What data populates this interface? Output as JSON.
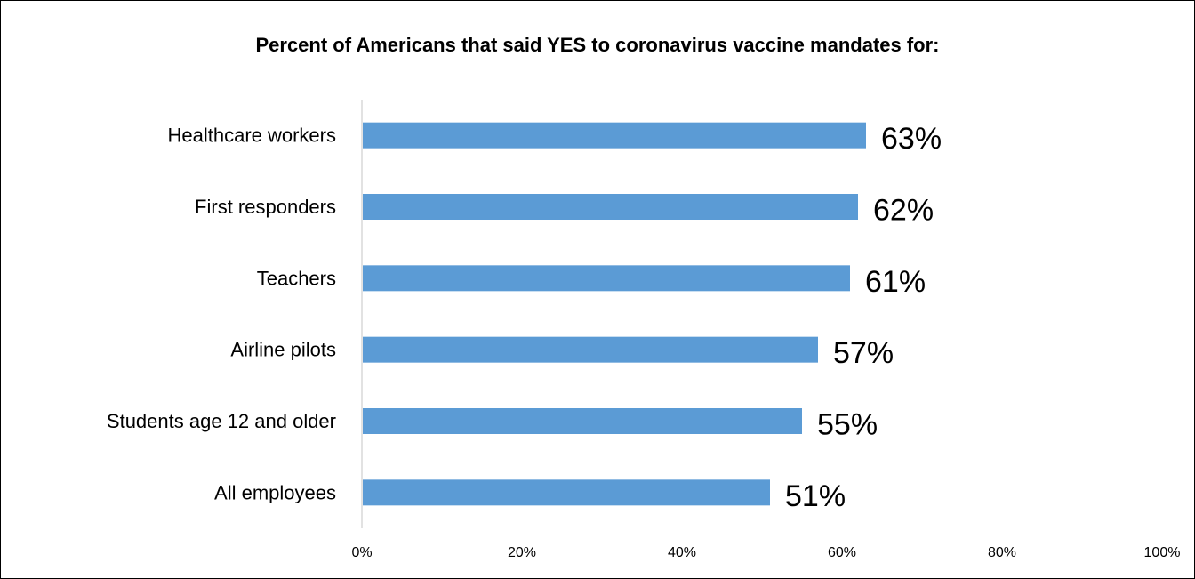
{
  "chart_data": {
    "type": "bar",
    "orientation": "horizontal",
    "title": "Percent of Americans that said YES to coronavirus vaccine mandates for:",
    "categories": [
      "Healthcare workers",
      "First responders",
      "Teachers",
      "Airline pilots",
      "Students age 12 and older",
      "All employees"
    ],
    "values": [
      63,
      62,
      61,
      57,
      55,
      51
    ],
    "data_labels": [
      "63%",
      "62%",
      "61%",
      "57%",
      "55%",
      "51%"
    ],
    "xlim": [
      0,
      100
    ],
    "x_ticks": [
      0,
      20,
      40,
      60,
      80,
      100
    ],
    "x_tick_labels": [
      "0%",
      "20%",
      "40%",
      "60%",
      "80%",
      "100%"
    ],
    "grid": false,
    "legend": "none",
    "bar_color": "#5b9bd5",
    "axis_color": "#d9d9d9"
  }
}
